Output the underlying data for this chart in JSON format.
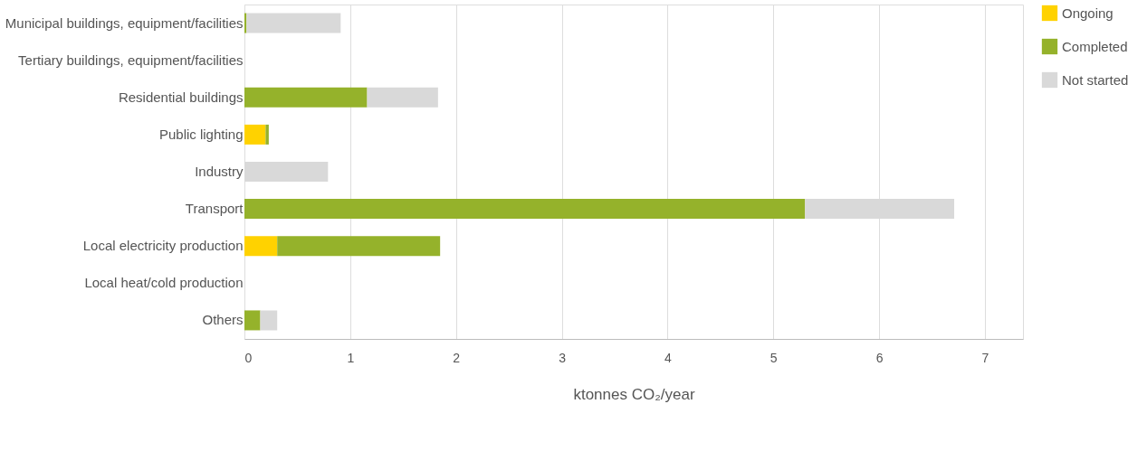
{
  "chart_data": {
    "type": "bar",
    "orientation": "horizontal",
    "stacked": true,
    "categories": [
      "Municipal buildings, equipment/facilities",
      "Tertiary buildings, equipment/facilities",
      "Residential buildings",
      "Public lighting",
      "Industry",
      "Transport",
      "Local electricity production",
      "Local heat/cold production",
      "Others"
    ],
    "series": [
      {
        "name": "Ongoing",
        "color": "#ffd200",
        "values": [
          null,
          null,
          null,
          0.2,
          null,
          null,
          0.31,
          null,
          null
        ]
      },
      {
        "name": "Completed",
        "color": "#95b22b",
        "values": [
          0.02,
          null,
          1.16,
          0.03,
          null,
          5.3,
          1.54,
          null,
          0.15
        ]
      },
      {
        "name": "Not started",
        "color": "#d9d9d9",
        "values": [
          0.89,
          null,
          0.67,
          null,
          0.79,
          1.41,
          null,
          null,
          0.16
        ]
      }
    ],
    "xlabel": "ktonnes CO₂/year",
    "xlim": [
      0,
      7.36
    ],
    "xticks": [
      0,
      1,
      2,
      3,
      4,
      5,
      6,
      7
    ],
    "grid": "x",
    "legend": "top right"
  }
}
